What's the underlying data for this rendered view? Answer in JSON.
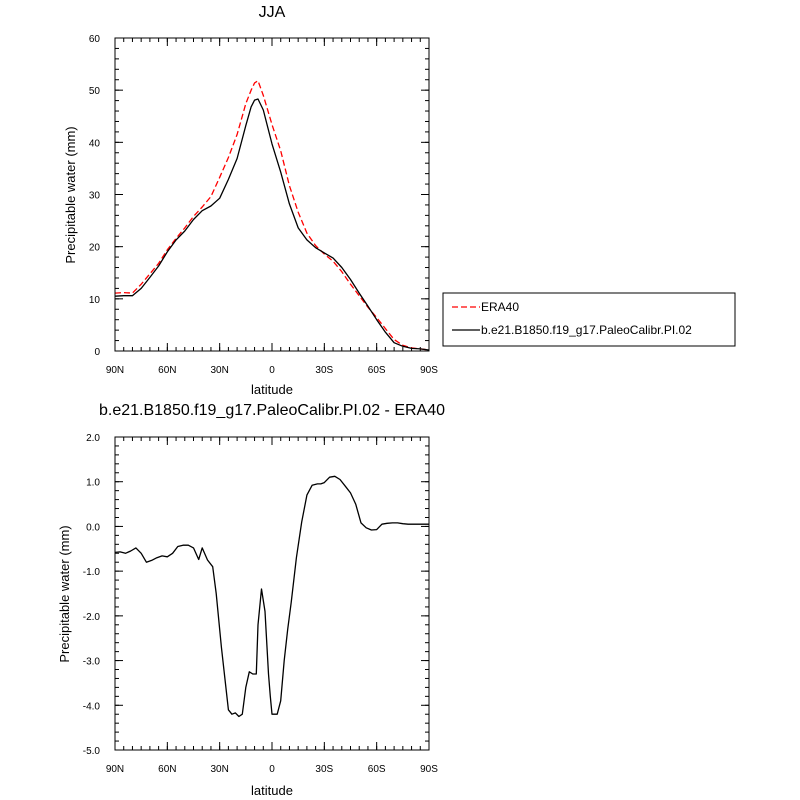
{
  "chart_data": [
    {
      "type": "line",
      "title": "JJA",
      "xlabel": "latitude",
      "ylabel": "Precipitable water (mm)",
      "xlim": [
        90,
        -90
      ],
      "ylim": [
        0,
        60
      ],
      "xticks": [
        90,
        60,
        30,
        0,
        -30,
        -60,
        -90
      ],
      "xtick_labels": [
        "90N",
        "60N",
        "30N",
        "0",
        "30S",
        "60S",
        "90S"
      ],
      "yticks": [
        0,
        10,
        20,
        30,
        40,
        50,
        60
      ],
      "ytick_labels": [
        "0",
        "10",
        "20",
        "30",
        "40",
        "50",
        "60"
      ],
      "legend_position": "right",
      "series": [
        {
          "name": "ERA40",
          "color": "#ff0000",
          "dash": "dashed",
          "x": [
            90,
            85,
            80,
            75,
            70,
            65,
            60,
            55,
            50,
            45,
            40,
            35,
            30,
            25,
            20,
            15,
            12,
            10,
            8,
            5,
            0,
            -5,
            -10,
            -15,
            -20,
            -25,
            -30,
            -35,
            -40,
            -45,
            -50,
            -55,
            -60,
            -65,
            -70,
            -75,
            -80,
            -85,
            -90
          ],
          "y": [
            11.1,
            11.2,
            11.1,
            12.8,
            14.8,
            16.8,
            19.4,
            21.6,
            23.6,
            25.8,
            27.6,
            29.6,
            33.3,
            37.1,
            41.5,
            47.4,
            50.0,
            51.4,
            51.8,
            49.0,
            43.4,
            38.4,
            31.7,
            26.6,
            22.6,
            20.2,
            18.6,
            17.2,
            15.2,
            12.8,
            10.6,
            8.4,
            6.4,
            4.3,
            2.2,
            1.1,
            0.6,
            0.4,
            0.2
          ]
        },
        {
          "name": "b.e21.B1850.f19_g17.PaleoCalibr.PI.02",
          "color": "#000000",
          "dash": "solid",
          "x": [
            90,
            85,
            80,
            75,
            70,
            65,
            60,
            55,
            50,
            45,
            40,
            35,
            30,
            25,
            20,
            15,
            12,
            10,
            8,
            5,
            0,
            -5,
            -10,
            -15,
            -20,
            -25,
            -30,
            -35,
            -40,
            -45,
            -50,
            -55,
            -60,
            -65,
            -70,
            -75,
            -80,
            -85,
            -90
          ],
          "y": [
            10.5,
            10.6,
            10.6,
            12.0,
            14.1,
            16.3,
            19.0,
            21.3,
            23.0,
            25.2,
            26.9,
            27.8,
            29.3,
            32.9,
            36.9,
            43.2,
            46.8,
            48.1,
            48.3,
            46.2,
            39.7,
            34.3,
            28.2,
            23.6,
            21.3,
            19.8,
            18.8,
            17.8,
            16.0,
            13.7,
            11.1,
            8.6,
            6.0,
            3.6,
            1.6,
            0.9,
            0.5,
            0.4,
            0.2
          ]
        }
      ]
    },
    {
      "type": "line",
      "title": "b.e21.B1850.f19_g17.PaleoCalibr.PI.02 - ERA40",
      "xlabel": "latitude",
      "ylabel": "Precipitable water (mm)",
      "xlim": [
        90,
        -90
      ],
      "ylim": [
        -5.0,
        2.0
      ],
      "xticks": [
        90,
        60,
        30,
        0,
        -30,
        -60,
        -90
      ],
      "xtick_labels": [
        "90N",
        "60N",
        "30N",
        "0",
        "30S",
        "60S",
        "90S"
      ],
      "yticks": [
        -5.0,
        -4.0,
        -3.0,
        -2.0,
        -1.0,
        0.0,
        1.0,
        2.0
      ],
      "ytick_labels": [
        "-5.0",
        "-4.0",
        "-3.0",
        "-2.0",
        "-1.0",
        "0.0",
        "1.0",
        "2.0"
      ],
      "series": [
        {
          "name": "",
          "color": "#000000",
          "dash": "solid",
          "x": [
            90,
            87,
            84,
            81,
            78,
            75,
            72,
            69,
            66,
            63,
            60,
            57,
            54,
            51,
            48,
            45,
            42,
            40,
            37,
            34,
            32,
            29,
            27,
            25,
            23,
            21,
            19,
            17,
            15,
            13,
            11,
            9,
            8,
            6,
            4,
            2,
            1,
            0,
            -1,
            -3,
            -5,
            -7,
            -9,
            -11,
            -14,
            -17,
            -20,
            -23,
            -26,
            -28,
            -30,
            -33,
            -36,
            -39,
            -42,
            -45,
            -48,
            -51,
            -54,
            -57,
            -60,
            -63,
            -66,
            -69,
            -72,
            -75,
            -78,
            -81,
            -84,
            -87,
            -90
          ],
          "y": [
            -0.58,
            -0.57,
            -0.6,
            -0.55,
            -0.48,
            -0.6,
            -0.8,
            -0.76,
            -0.7,
            -0.66,
            -0.68,
            -0.6,
            -0.45,
            -0.42,
            -0.42,
            -0.48,
            -0.74,
            -0.48,
            -0.75,
            -0.9,
            -1.5,
            -2.7,
            -3.4,
            -4.1,
            -4.2,
            -4.17,
            -4.25,
            -4.2,
            -3.6,
            -3.25,
            -3.3,
            -3.3,
            -2.2,
            -1.4,
            -1.9,
            -3.3,
            -3.8,
            -4.2,
            -4.2,
            -4.2,
            -3.9,
            -3.0,
            -2.3,
            -1.7,
            -0.7,
            0.1,
            0.7,
            0.92,
            0.95,
            0.95,
            0.98,
            1.1,
            1.12,
            1.05,
            0.9,
            0.75,
            0.5,
            0.08,
            -0.03,
            -0.08,
            -0.07,
            0.05,
            0.07,
            0.08,
            0.08,
            0.06,
            0.05,
            0.05,
            0.05,
            0.05,
            0.05
          ]
        }
      ]
    }
  ]
}
